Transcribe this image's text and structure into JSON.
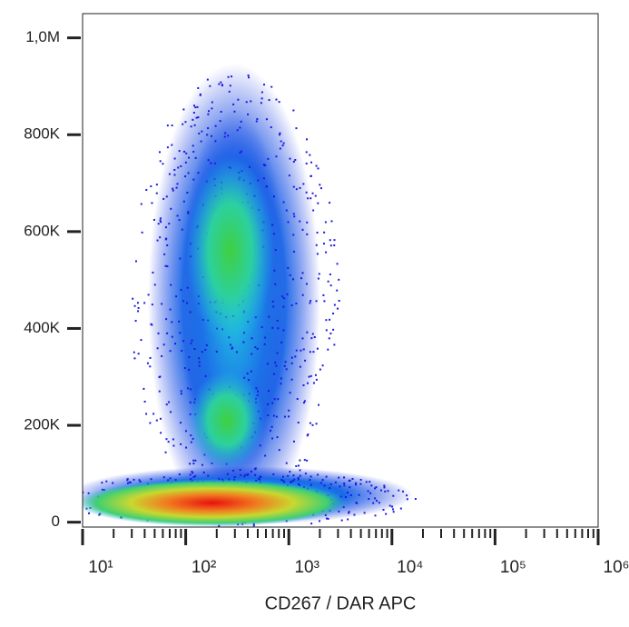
{
  "chart_data": {
    "type": "density",
    "x_label": "CD267 / DAR APC",
    "x": [
      180,
      270,
      250
    ],
    "y": [
      40000,
      560000,
      210000
    ],
    "xscale": "log",
    "xlim": [
      10,
      1000000
    ],
    "xticks": [
      {
        "value": 10,
        "label": "10¹"
      },
      {
        "value": 100,
        "label": "10²"
      },
      {
        "value": 1000,
        "label": "10³"
      },
      {
        "value": 10000,
        "label": "10⁴"
      },
      {
        "value": 100000,
        "label": "10⁵"
      },
      {
        "value": 1000000,
        "label": "10⁶"
      }
    ],
    "ylim": [
      -10000,
      1050000
    ],
    "yticks": [
      0,
      {
        "value": 200000,
        "label": "200K"
      },
      {
        "value": 400000,
        "label": "400K"
      },
      {
        "value": 600000,
        "label": "600K"
      },
      {
        "value": 800000,
        "label": "800K"
      },
      {
        "value": 1000000,
        "label": "1,0M"
      }
    ]
  }
}
